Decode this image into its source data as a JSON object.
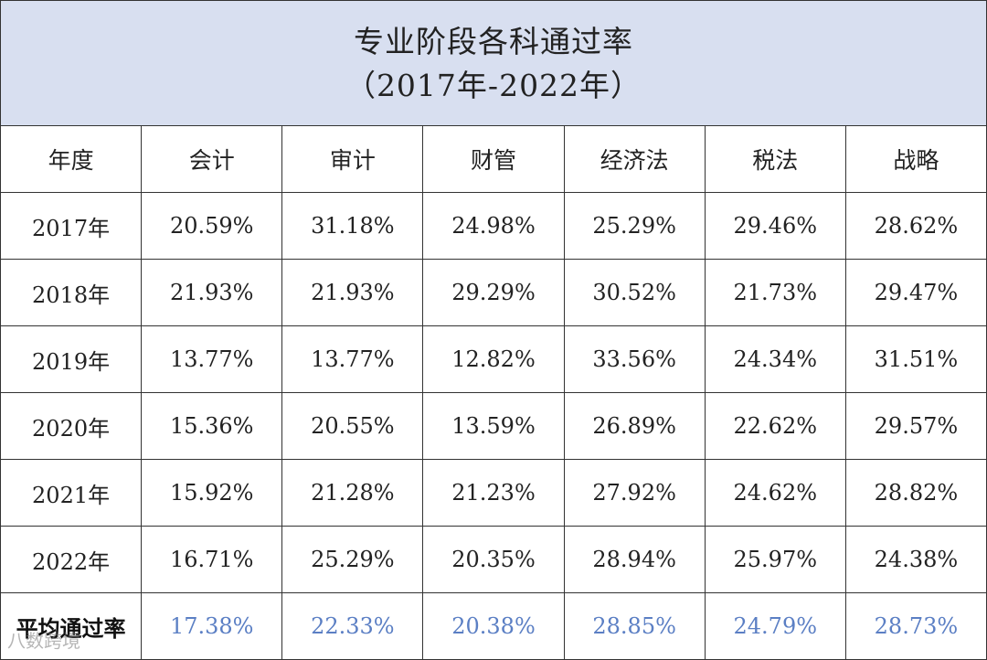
{
  "title": {
    "line1": "专业阶段各科通过率",
    "line2": "（2017年-2022年）"
  },
  "chart_data": {
    "type": "table",
    "header": [
      "年度",
      "会计",
      "审计",
      "财管",
      "经济法",
      "税法",
      "战略"
    ],
    "rows": [
      {
        "label": "2017年",
        "values": [
          "20.59%",
          "31.18%",
          "24.98%",
          "25.29%",
          "29.46%",
          "28.62%"
        ]
      },
      {
        "label": "2018年",
        "values": [
          "21.93%",
          "21.93%",
          "29.29%",
          "30.52%",
          "21.73%",
          "29.47%"
        ]
      },
      {
        "label": "2019年",
        "values": [
          "13.77%",
          "13.77%",
          "12.82%",
          "33.56%",
          "24.34%",
          "31.51%"
        ]
      },
      {
        "label": "2020年",
        "values": [
          "15.36%",
          "20.55%",
          "13.59%",
          "26.89%",
          "22.62%",
          "29.57%"
        ]
      },
      {
        "label": "2021年",
        "values": [
          "15.92%",
          "21.28%",
          "21.23%",
          "27.92%",
          "24.62%",
          "28.82%"
        ]
      },
      {
        "label": "2022年",
        "values": [
          "16.71%",
          "25.29%",
          "20.35%",
          "28.94%",
          "25.97%",
          "24.38%"
        ]
      }
    ],
    "average": {
      "label": "平均通过率",
      "values": [
        "17.38%",
        "22.33%",
        "20.38%",
        "28.85%",
        "24.79%",
        "28.73%"
      ]
    },
    "colors": {
      "title_bg": "#d8dff0",
      "average_text": "#5b7fc4"
    }
  },
  "watermark": {
    "corner_text": "八数跨境"
  }
}
